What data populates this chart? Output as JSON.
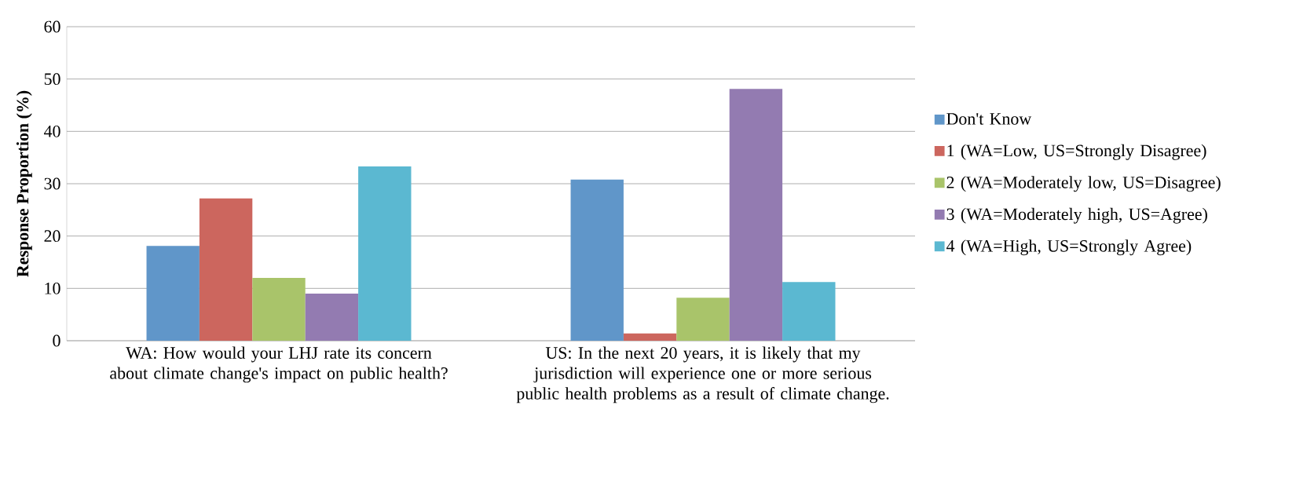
{
  "chart_data": {
    "type": "bar",
    "ylabel": "Response Proportion (%)",
    "categories": [
      "WA: How would your LHJ rate its concern about climate change's impact on public health?",
      "US: In the next 20 years, it is likely that my jurisdiction will experience one or more serious public health problems as a result of climate change."
    ],
    "series": [
      {
        "name": "Don't Know",
        "color": "#6096c9",
        "values": [
          18.1,
          30.8
        ]
      },
      {
        "name": "1 (WA=Low, US=Strongly Disagree)",
        "color": "#cc665e",
        "values": [
          27.2,
          1.4
        ]
      },
      {
        "name": "2 (WA=Moderately low, US=Disagree)",
        "color": "#a9c46a",
        "values": [
          12.0,
          8.2
        ]
      },
      {
        "name": "3 (WA=Moderately high, US=Agree)",
        "color": "#937bb1",
        "values": [
          9.0,
          48.1
        ]
      },
      {
        "name": "4 (WA=High, US=Strongly Agree)",
        "color": "#5bb8d1",
        "values": [
          33.3,
          11.2
        ]
      }
    ],
    "ylim": [
      0,
      60
    ],
    "yticks": [
      0,
      10,
      20,
      30,
      40,
      50,
      60
    ],
    "grid": "y",
    "legend": "right"
  }
}
